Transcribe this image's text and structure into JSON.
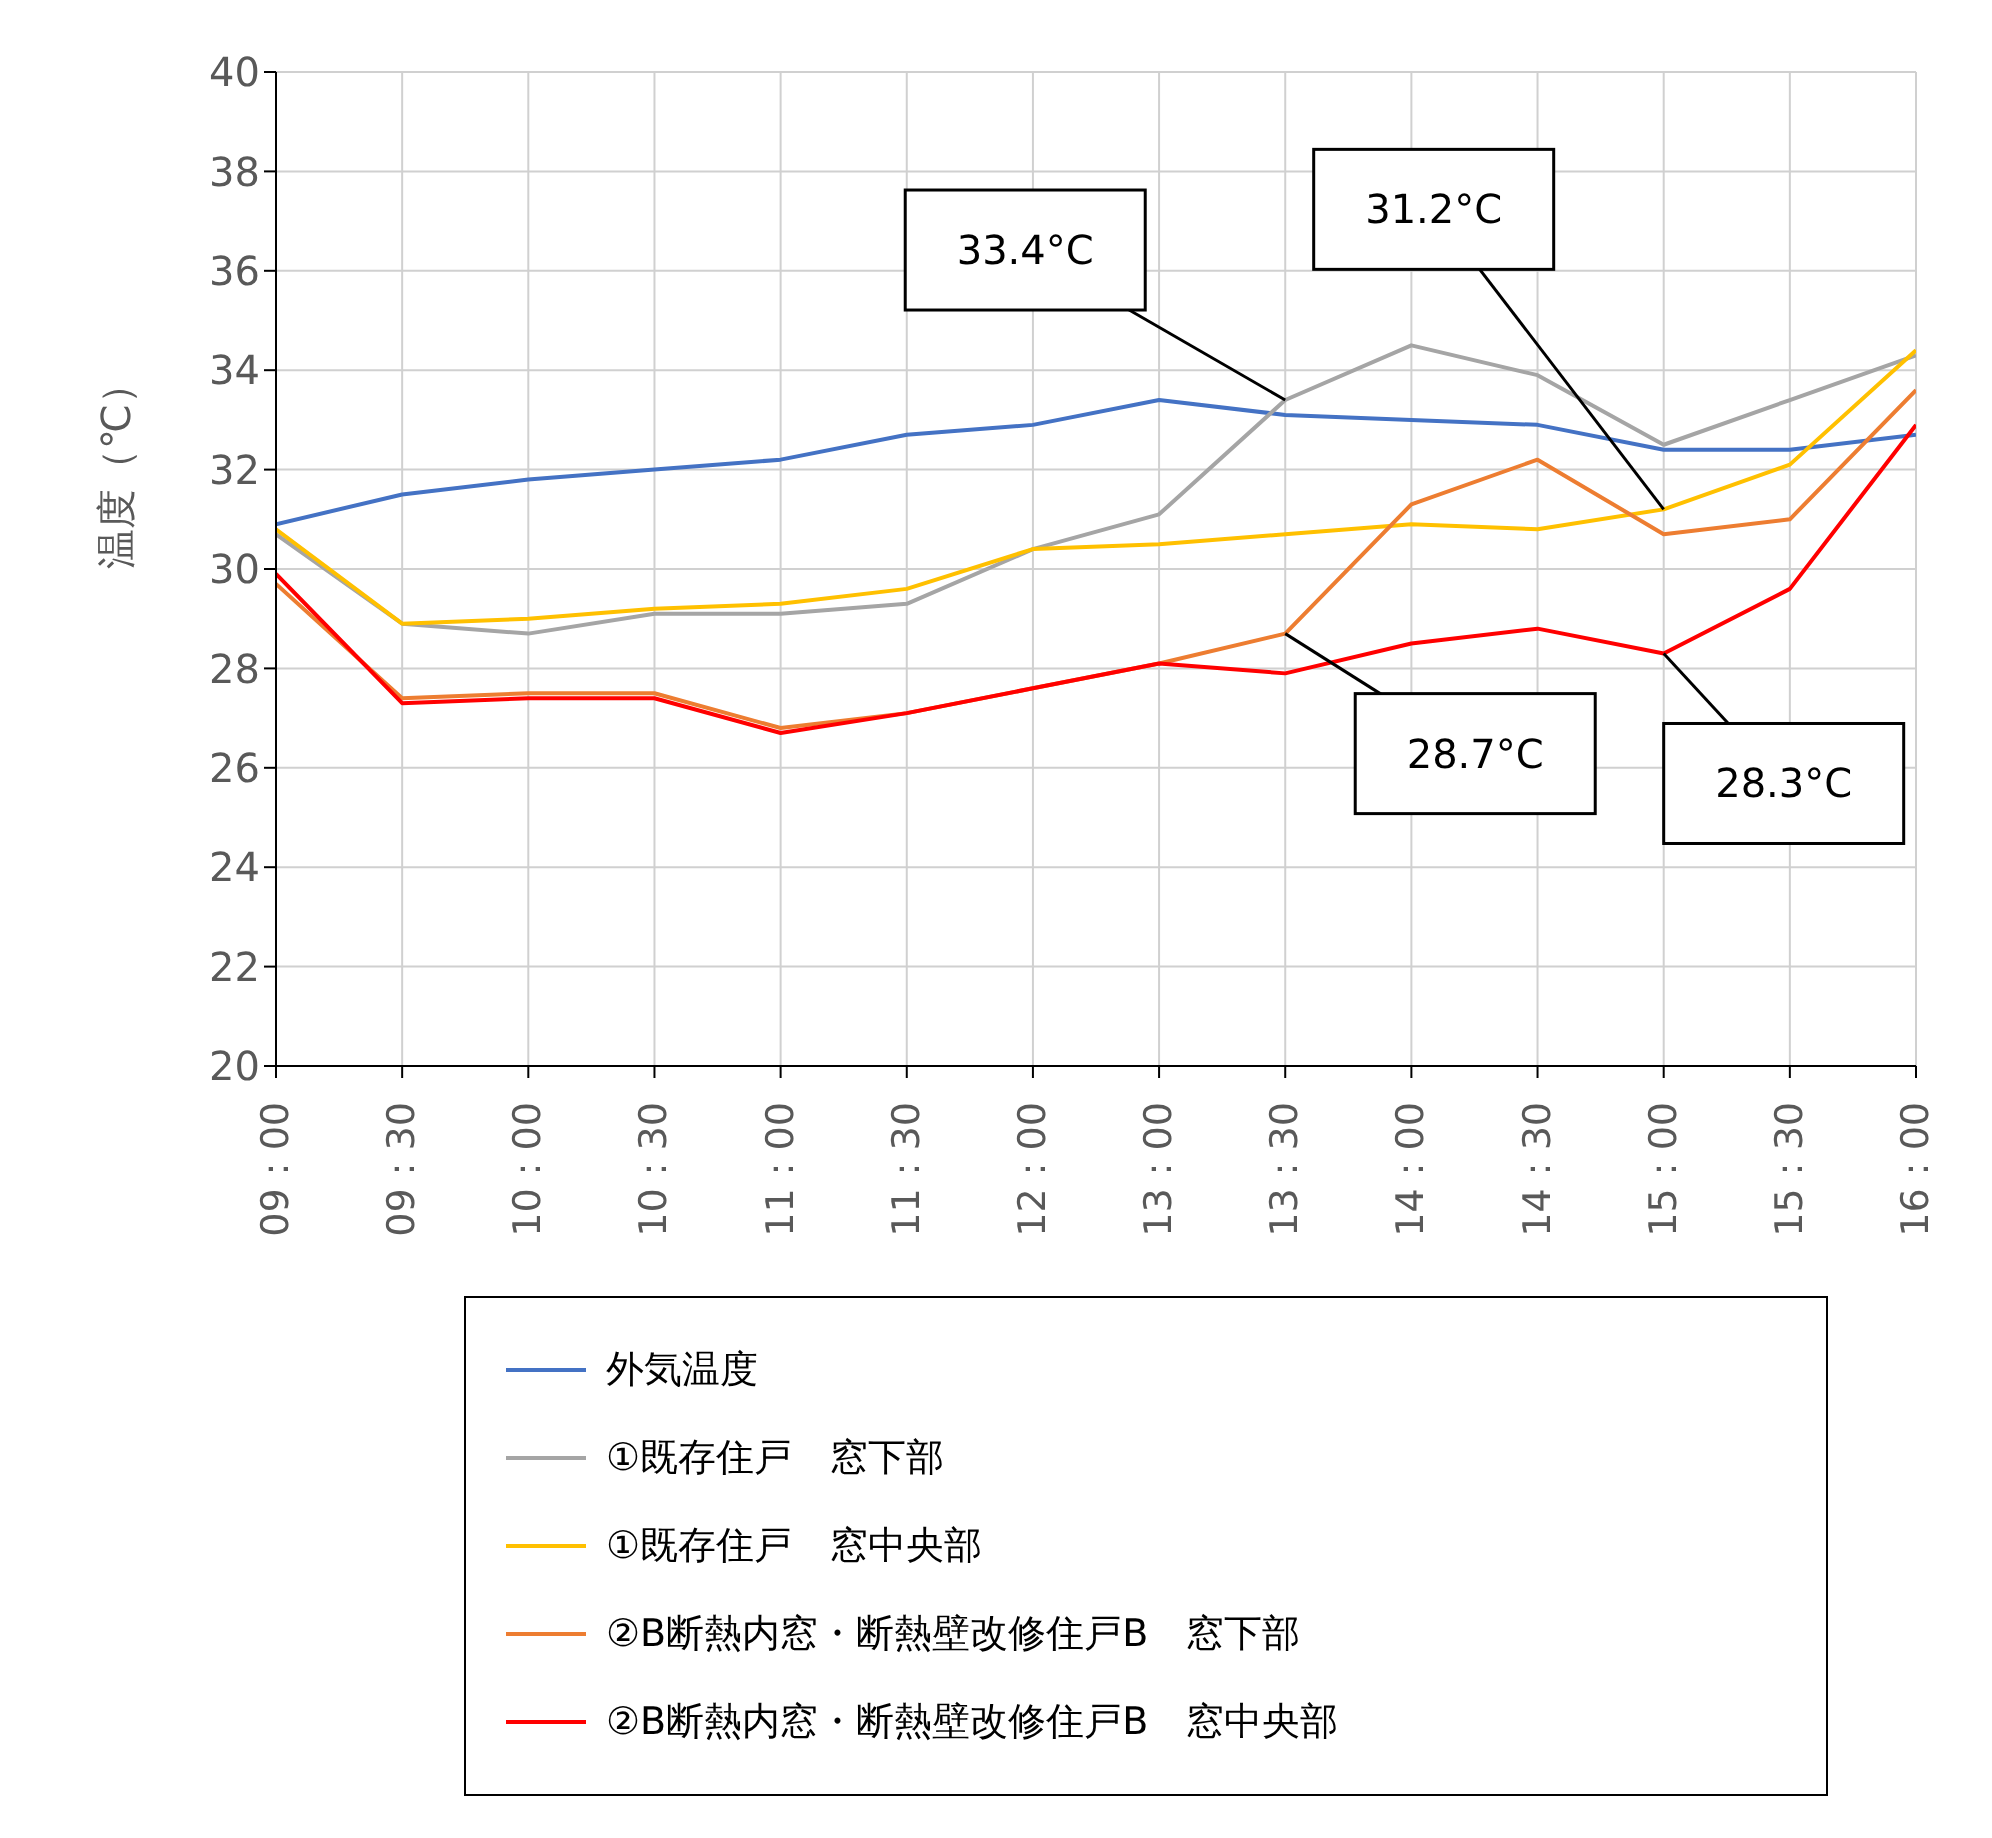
{
  "chart_data": {
    "type": "line",
    "ylabel": "温度（℃）",
    "categories": [
      "09：00",
      "09：30",
      "10：00",
      "10：30",
      "11：00",
      "11：30",
      "12：00",
      "13：00",
      "13：30",
      "14：00",
      "14：30",
      "15：00",
      "15：30",
      "16：00"
    ],
    "series": [
      {
        "name": "外気温度",
        "color": "#4472c4",
        "values": [
          30.9,
          31.5,
          31.8,
          32.0,
          32.2,
          32.7,
          32.9,
          33.4,
          33.1,
          33.0,
          32.9,
          32.4,
          32.4,
          32.7
        ]
      },
      {
        "name": "①既存住戸　窓下部",
        "color": "#a5a5a5",
        "values": [
          30.7,
          28.9,
          28.7,
          29.1,
          29.1,
          29.3,
          30.4,
          31.1,
          33.4,
          34.5,
          33.9,
          32.5,
          33.4,
          34.3
        ]
      },
      {
        "name": "①既存住戸　窓中央部",
        "color": "#ffc000",
        "values": [
          30.8,
          28.9,
          29.0,
          29.2,
          29.3,
          29.6,
          30.4,
          30.5,
          30.7,
          30.9,
          30.8,
          31.2,
          32.1,
          34.4
        ]
      },
      {
        "name": "②B断熱内窓・断熱壁改修住戸B　窓下部",
        "color": "#ed7d31",
        "values": [
          29.7,
          27.4,
          27.5,
          27.5,
          26.8,
          27.1,
          27.6,
          28.1,
          28.7,
          31.3,
          32.2,
          30.7,
          31.0,
          33.6
        ]
      },
      {
        "name": "②B断熱内窓・断熱壁改修住戸B　窓中央部",
        "color": "#ff0000",
        "values": [
          29.9,
          27.3,
          27.4,
          27.4,
          26.7,
          27.1,
          27.6,
          28.1,
          27.9,
          28.5,
          28.8,
          28.3,
          29.6,
          32.9
        ]
      }
    ],
    "ylim": [
      20,
      40
    ],
    "yticks": [
      20,
      22,
      24,
      26,
      28,
      30,
      32,
      34,
      36,
      38,
      40
    ],
    "grid": true,
    "legend": "bottom",
    "marker": "none",
    "line_style": "solid",
    "annotations": [
      {
        "text": "33.4°C",
        "x": "13：30",
        "y": 33.4
      },
      {
        "text": "31.2°C",
        "x": "15：00",
        "y": 31.2
      },
      {
        "text": "28.7°C",
        "x": "13：30",
        "y": 28.7
      },
      {
        "text": "28.3°C",
        "x": "15：00",
        "y": 28.3
      }
    ]
  }
}
